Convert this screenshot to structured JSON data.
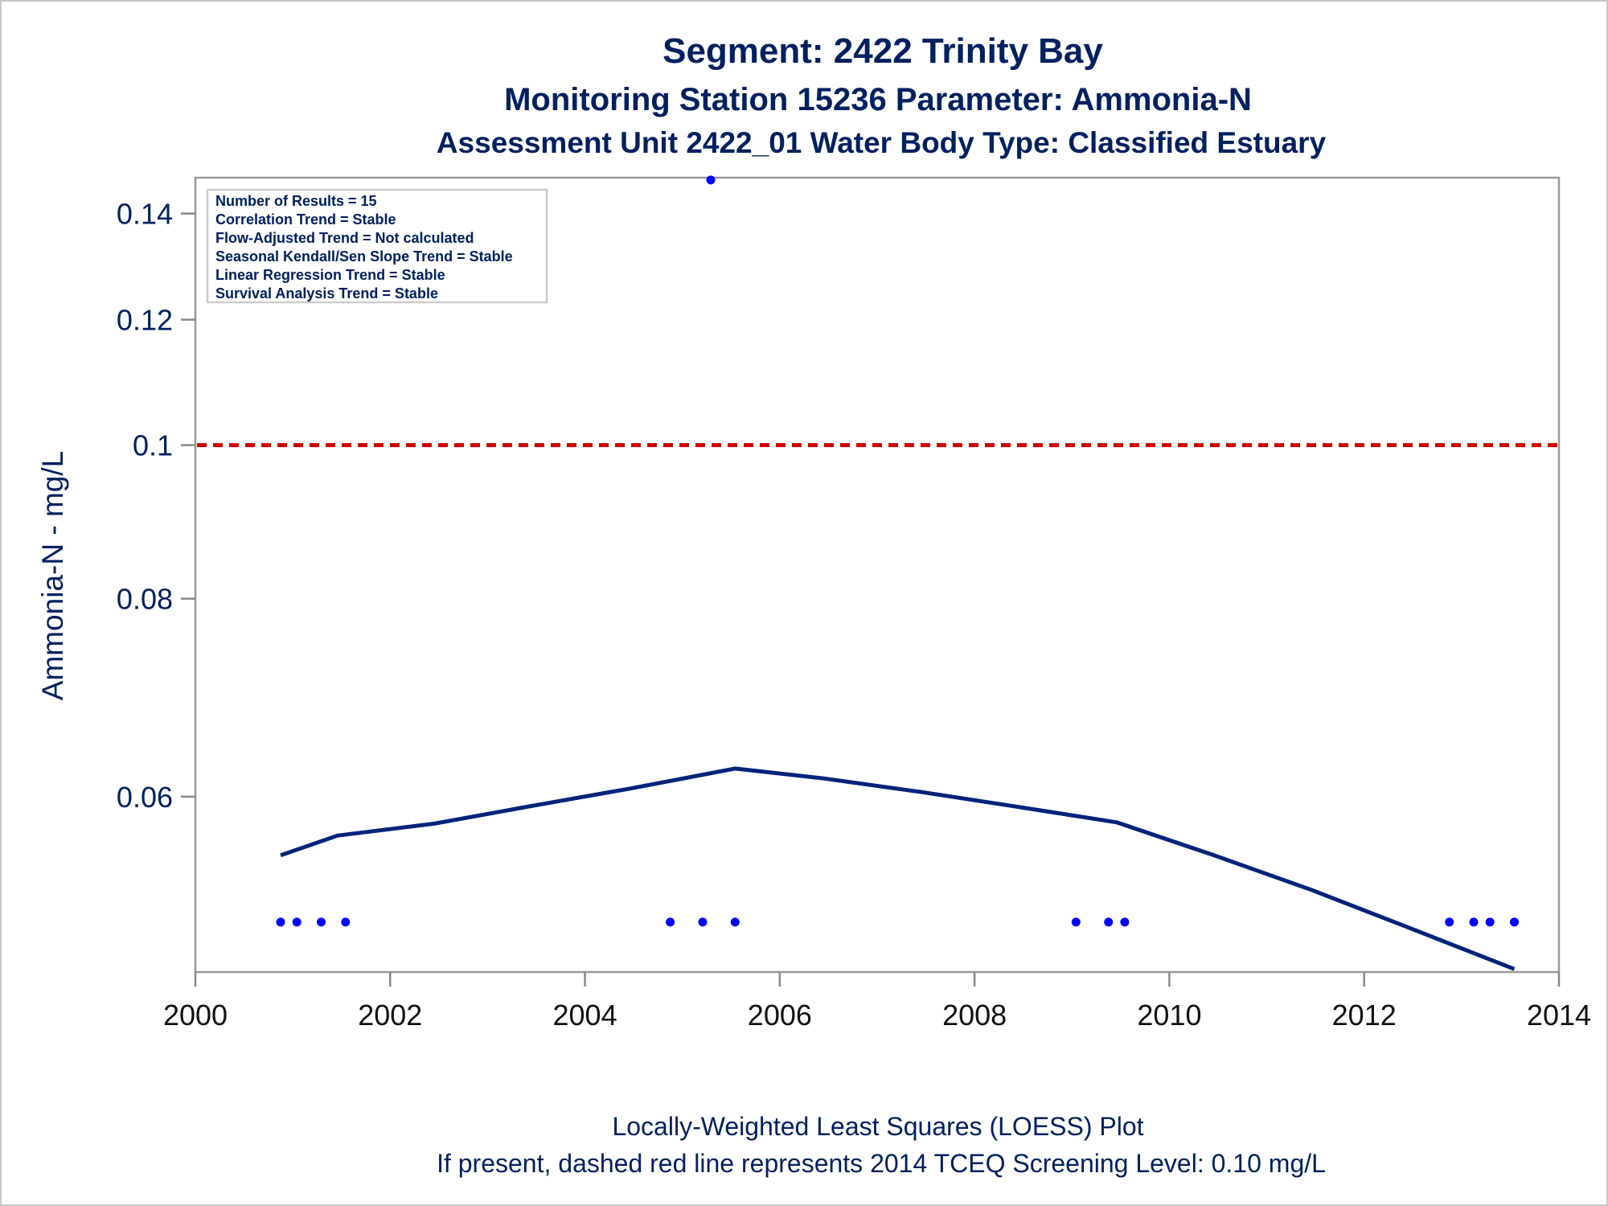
{
  "title": "Segment: 2422  Trinity Bay",
  "subtitle1": "Monitoring Station 15236 Parameter: Ammonia-N",
  "subtitle2": "Assessment Unit 2422_01   Water Body Type: Classified Estuary",
  "footnote1": "Locally-Weighted Least Squares (LOESS) Plot",
  "footnote2": "If present, dashed red line represents 2014 TCEQ Screening Level: 0.10 mg/L",
  "stats": [
    "Number of Results = 15",
    "Correlation Trend = Stable",
    "Flow-Adjusted Trend = Not calculated",
    "Seasonal Kendall/Sen Slope Trend = Stable",
    "Linear Regression Trend = Stable",
    "Survival Analysis Trend = Stable"
  ],
  "colors": {
    "text": "#002060",
    "points": "#0000ff",
    "loess": "#00237a",
    "screening": "#cc0000",
    "axis": "#888888"
  },
  "chart_data": {
    "type": "scatter",
    "xlabel": "",
    "ylabel": "Ammonia-N - mg/L",
    "y_scale": "log",
    "xlim": [
      2000,
      2014
    ],
    "ylim": [
      0.0465,
      0.1475
    ],
    "x_ticks": [
      "2000",
      "2002",
      "2004",
      "2006",
      "2008",
      "2010",
      "2012",
      "2014"
    ],
    "y_ticks": [
      "0.06",
      "0.08",
      "0.1",
      "0.12",
      "0.14"
    ],
    "grid": false,
    "series": [
      {
        "points": [
          {
            "x": "2000-11",
            "y": 0.05
          },
          {
            "x": "2001-01",
            "y": 0.05
          },
          {
            "x": "2001-04",
            "y": 0.05
          },
          {
            "x": "2001-07",
            "y": 0.05
          },
          {
            "x": "2004-11",
            "y": 0.05
          },
          {
            "x": "2005-03",
            "y": 0.05
          },
          {
            "x": "2005-04",
            "y": 0.147
          },
          {
            "x": "2005-07",
            "y": 0.05
          },
          {
            "x": "2009-01",
            "y": 0.05
          },
          {
            "x": "2009-05",
            "y": 0.05
          },
          {
            "x": "2009-07",
            "y": 0.05
          },
          {
            "x": "2012-11",
            "y": 0.05
          },
          {
            "x": "2013-02",
            "y": 0.05
          },
          {
            "x": "2013-04",
            "y": 0.05
          },
          {
            "x": "2013-07",
            "y": 0.05
          }
        ]
      },
      {
        "type": "line",
        "points": [
          {
            "x": "2000-11",
            "y": 0.0551
          },
          {
            "x": "2001-06",
            "y": 0.0567
          },
          {
            "x": "2002-06",
            "y": 0.0577
          },
          {
            "x": "2003-06",
            "y": 0.0592
          },
          {
            "x": "2004-06",
            "y": 0.0607
          },
          {
            "x": "2005-07",
            "y": 0.0625
          },
          {
            "x": "2006-06",
            "y": 0.0616
          },
          {
            "x": "2007-06",
            "y": 0.0604
          },
          {
            "x": "2008-06",
            "y": 0.0591
          },
          {
            "x": "2009-06",
            "y": 0.0578
          },
          {
            "x": "2010-06",
            "y": 0.0551
          },
          {
            "x": "2011-06",
            "y": 0.0524
          },
          {
            "x": "2012-06",
            "y": 0.0496
          },
          {
            "x": "2013-07",
            "y": 0.0467
          }
        ]
      }
    ],
    "reference_line": {
      "y": 0.1,
      "style": "dashed"
    }
  }
}
